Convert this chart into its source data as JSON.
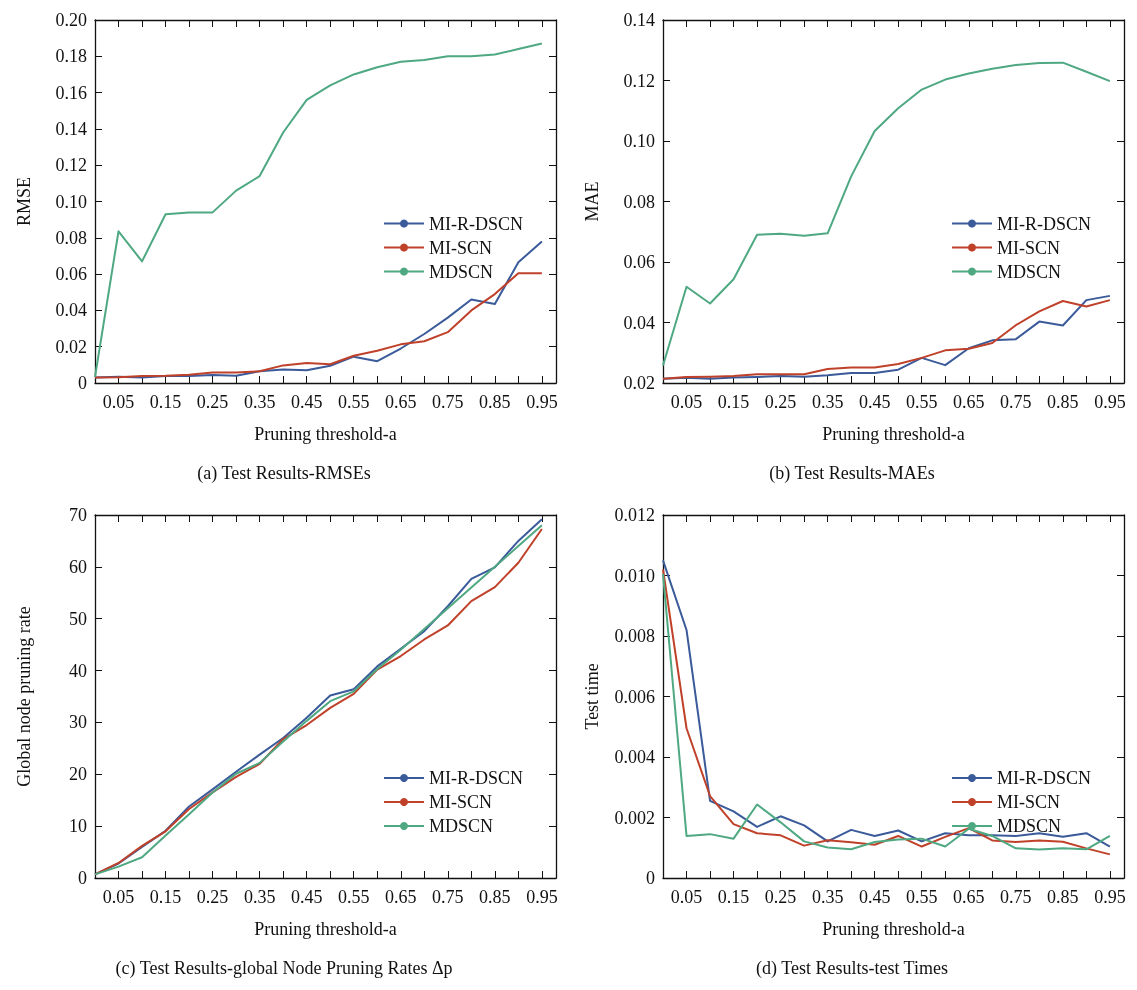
{
  "chart_data": [
    {
      "type": "line",
      "ylabel": "RMSE",
      "xlabel": "Pruning threshold-a",
      "annotations": [
        "(a) Test Results-RMSEs"
      ],
      "legend": "right",
      "grid": false,
      "x": [
        0,
        0.05,
        0.1,
        0.15,
        0.2,
        0.25,
        0.3,
        0.35,
        0.4,
        0.45,
        0.5,
        0.55,
        0.6,
        0.65,
        0.7,
        0.75,
        0.8,
        0.85,
        0.9,
        0.95
      ],
      "xlim": [
        0,
        0.98
      ],
      "xticks": [
        {
          "value": 0.05,
          "label": "0.05"
        },
        {
          "value": 0.1,
          "label": null
        },
        {
          "value": 0.15,
          "label": "0.15"
        },
        {
          "value": 0.2,
          "label": null
        },
        {
          "value": 0.25,
          "label": "0.25"
        },
        {
          "value": 0.3,
          "label": null
        },
        {
          "value": 0.35,
          "label": "0.35"
        },
        {
          "value": 0.4,
          "label": null
        },
        {
          "value": 0.45,
          "label": "0.45"
        },
        {
          "value": 0.5,
          "label": null
        },
        {
          "value": 0.55,
          "label": "0.55"
        },
        {
          "value": 0.6,
          "label": null
        },
        {
          "value": 0.65,
          "label": "0.65"
        },
        {
          "value": 0.7,
          "label": null
        },
        {
          "value": 0.75,
          "label": "0.75"
        },
        {
          "value": 0.8,
          "label": null
        },
        {
          "value": 0.85,
          "label": "0.85"
        },
        {
          "value": 0.9,
          "label": null
        },
        {
          "value": 0.95,
          "label": "0.95"
        }
      ],
      "ylim": [
        0,
        0.2
      ],
      "yticks": [
        0,
        {
          "value": 0.02,
          "label": "0.02"
        },
        {
          "value": 0.04,
          "label": "0.04"
        },
        {
          "value": 0.06,
          "label": "0.06"
        },
        {
          "value": 0.08,
          "label": "0.08"
        },
        {
          "value": 0.1,
          "label": "0.10"
        },
        {
          "value": 0.12,
          "label": "0.12"
        },
        {
          "value": 0.14,
          "label": "0.14"
        },
        {
          "value": 0.16,
          "label": "0.16"
        },
        {
          "value": 0.18,
          "label": "0.18"
        },
        {
          "value": 0.2,
          "label": "0.20"
        }
      ],
      "series": [
        {
          "name": "MI-R-DSCN",
          "color": "#3a5a9a",
          "values": [
            0.003,
            0.0035,
            0.003,
            0.0038,
            0.0038,
            0.0044,
            0.004,
            0.0065,
            0.0075,
            0.007,
            0.0095,
            0.0145,
            0.012,
            0.019,
            0.027,
            0.036,
            0.046,
            0.0435,
            0.0665,
            0.078
          ]
        },
        {
          "name": "MI-SCN",
          "color": "#c0412a",
          "values": [
            0.003,
            0.0032,
            0.0038,
            0.004,
            0.0045,
            0.0058,
            0.0058,
            0.0065,
            0.0097,
            0.011,
            0.0103,
            0.015,
            0.0178,
            0.0213,
            0.023,
            0.028,
            0.04,
            0.049,
            0.0605,
            0.0605
          ]
        },
        {
          "name": "MDSCN",
          "color": "#4ea882",
          "values": [
            0.0034,
            0.0836,
            0.067,
            0.093,
            0.094,
            0.094,
            0.106,
            0.114,
            0.138,
            0.156,
            0.164,
            0.17,
            0.174,
            0.177,
            0.178,
            0.18,
            0.18,
            0.181,
            0.184,
            0.187
          ]
        }
      ]
    },
    {
      "type": "line",
      "ylabel": "MAE",
      "xlabel": "Pruning threshold-a",
      "annotations": [
        "(b) Test Results-MAEs"
      ],
      "legend": "right",
      "grid": false,
      "x": [
        0,
        0.05,
        0.1,
        0.15,
        0.2,
        0.25,
        0.3,
        0.35,
        0.4,
        0.45,
        0.5,
        0.55,
        0.6,
        0.65,
        0.7,
        0.75,
        0.8,
        0.85,
        0.9,
        0.95
      ],
      "xlim": [
        0,
        0.98
      ],
      "xticks": [
        {
          "value": 0.05,
          "label": "0.05"
        },
        {
          "value": 0.1,
          "label": null
        },
        {
          "value": 0.15,
          "label": "0.15"
        },
        {
          "value": 0.2,
          "label": null
        },
        {
          "value": 0.25,
          "label": "0.25"
        },
        {
          "value": 0.3,
          "label": null
        },
        {
          "value": 0.35,
          "label": "0.35"
        },
        {
          "value": 0.4,
          "label": null
        },
        {
          "value": 0.45,
          "label": "0.45"
        },
        {
          "value": 0.5,
          "label": null
        },
        {
          "value": 0.55,
          "label": "0.55"
        },
        {
          "value": 0.6,
          "label": null
        },
        {
          "value": 0.65,
          "label": "0.65"
        },
        {
          "value": 0.7,
          "label": null
        },
        {
          "value": 0.75,
          "label": "0.75"
        },
        {
          "value": 0.8,
          "label": null
        },
        {
          "value": 0.85,
          "label": "0.85"
        },
        {
          "value": 0.9,
          "label": null
        },
        {
          "value": 0.95,
          "label": "0.95"
        }
      ],
      "ylim": [
        0.02,
        0.14
      ],
      "yticks": [
        {
          "value": 0.02,
          "label": "0.02"
        },
        {
          "value": 0.04,
          "label": "0.04"
        },
        {
          "value": 0.06,
          "label": "0.06"
        },
        {
          "value": 0.08,
          "label": "0.08"
        },
        {
          "value": 0.1,
          "label": "0.10"
        },
        {
          "value": 0.12,
          "label": "0.12"
        },
        {
          "value": 0.14,
          "label": "0.14"
        }
      ],
      "series": [
        {
          "name": "MI-R-DSCN",
          "color": "#3a5a9a",
          "values": [
            0.0214,
            0.0217,
            0.0214,
            0.0218,
            0.022,
            0.0223,
            0.0221,
            0.0226,
            0.0233,
            0.0233,
            0.0244,
            0.0283,
            0.0259,
            0.0315,
            0.0341,
            0.0345,
            0.0403,
            0.039,
            0.0474,
            0.0488
          ]
        },
        {
          "name": "MI-SCN",
          "color": "#c0412a",
          "values": [
            0.0214,
            0.022,
            0.0221,
            0.0223,
            0.0229,
            0.0229,
            0.0229,
            0.0246,
            0.0251,
            0.0251,
            0.0263,
            0.0283,
            0.0308,
            0.0313,
            0.0332,
            0.0391,
            0.0437,
            0.0471,
            0.0453,
            0.0474
          ]
        },
        {
          "name": "MDSCN",
          "color": "#4ea882",
          "values": [
            0.0258,
            0.0518,
            0.0463,
            0.0543,
            0.069,
            0.0693,
            0.0687,
            0.0695,
            0.0883,
            0.1033,
            0.1108,
            0.117,
            0.1203,
            0.1223,
            0.1239,
            0.1251,
            0.1258,
            0.1259,
            0.1229,
            0.1198
          ]
        }
      ]
    },
    {
      "type": "line",
      "ylabel": "Global node pruning rate",
      "xlabel": "Pruning threshold-a",
      "annotations": [
        "(c) Test Results-global Node Pruning Rates Δp"
      ],
      "legend": "bottom right",
      "grid": false,
      "x": [
        0,
        0.05,
        0.1,
        0.15,
        0.2,
        0.25,
        0.3,
        0.35,
        0.4,
        0.45,
        0.5,
        0.55,
        0.6,
        0.65,
        0.7,
        0.75,
        0.8,
        0.85,
        0.9,
        0.95
      ],
      "xlim": [
        0,
        0.98
      ],
      "xticks": [
        {
          "value": 0.05,
          "label": "0.05"
        },
        {
          "value": 0.1,
          "label": null
        },
        {
          "value": 0.15,
          "label": "0.15"
        },
        {
          "value": 0.2,
          "label": null
        },
        {
          "value": 0.25,
          "label": "0.25"
        },
        {
          "value": 0.3,
          "label": null
        },
        {
          "value": 0.35,
          "label": "0.35"
        },
        {
          "value": 0.4,
          "label": null
        },
        {
          "value": 0.45,
          "label": "0.45"
        },
        {
          "value": 0.5,
          "label": null
        },
        {
          "value": 0.55,
          "label": "0.55"
        },
        {
          "value": 0.6,
          "label": null
        },
        {
          "value": 0.65,
          "label": "0.65"
        },
        {
          "value": 0.7,
          "label": null
        },
        {
          "value": 0.75,
          "label": "0.75"
        },
        {
          "value": 0.8,
          "label": null
        },
        {
          "value": 0.85,
          "label": "0.85"
        },
        {
          "value": 0.9,
          "label": null
        },
        {
          "value": 0.95,
          "label": "0.95"
        }
      ],
      "ylim": [
        0,
        70
      ],
      "yticks": [
        0,
        10,
        20,
        30,
        40,
        50,
        60,
        70
      ],
      "series": [
        {
          "name": "MI-R-DSCN",
          "color": "#3a5a9a",
          "values": [
            0.7,
            2.8,
            6.0,
            9.1,
            13.8,
            17.1,
            20.5,
            23.8,
            27.0,
            30.9,
            35.2,
            36.4,
            40.8,
            44.2,
            47.6,
            52.4,
            57.7,
            59.9,
            65.0,
            69.2
          ]
        },
        {
          "name": "MI-SCN",
          "color": "#c0412a",
          "values": [
            0.7,
            2.9,
            6.2,
            9.0,
            13.3,
            16.5,
            19.5,
            22.0,
            26.8,
            29.5,
            32.8,
            35.5,
            40.2,
            42.8,
            46.0,
            48.7,
            53.4,
            56.1,
            60.8,
            67.3
          ]
        },
        {
          "name": "MDSCN",
          "color": "#4ea882",
          "values": [
            0.7,
            2.2,
            4.0,
            8.2,
            12.3,
            16.5,
            20.1,
            22.2,
            26.3,
            30.3,
            34.1,
            36.0,
            40.3,
            44.0,
            48.0,
            52.0,
            56.0,
            60.0,
            64.0,
            68.0
          ]
        }
      ]
    },
    {
      "type": "line",
      "ylabel": "Test time",
      "xlabel": "Pruning threshold-a",
      "annotations": [
        "(d) Test Results-test Times"
      ],
      "legend": "bottom right",
      "grid": false,
      "x": [
        0,
        0.05,
        0.1,
        0.15,
        0.2,
        0.25,
        0.3,
        0.35,
        0.4,
        0.45,
        0.5,
        0.55,
        0.6,
        0.65,
        0.7,
        0.75,
        0.8,
        0.85,
        0.9,
        0.95
      ],
      "xlim": [
        0,
        0.98
      ],
      "xticks": [
        {
          "value": 0.05,
          "label": "0.05"
        },
        {
          "value": 0.1,
          "label": null
        },
        {
          "value": 0.15,
          "label": "0.15"
        },
        {
          "value": 0.2,
          "label": null
        },
        {
          "value": 0.25,
          "label": "0.25"
        },
        {
          "value": 0.3,
          "label": null
        },
        {
          "value": 0.35,
          "label": "0.35"
        },
        {
          "value": 0.4,
          "label": null
        },
        {
          "value": 0.45,
          "label": "0.45"
        },
        {
          "value": 0.5,
          "label": null
        },
        {
          "value": 0.55,
          "label": "0.55"
        },
        {
          "value": 0.6,
          "label": null
        },
        {
          "value": 0.65,
          "label": "0.65"
        },
        {
          "value": 0.7,
          "label": null
        },
        {
          "value": 0.75,
          "label": "0.75"
        },
        {
          "value": 0.8,
          "label": null
        },
        {
          "value": 0.85,
          "label": "0.85"
        },
        {
          "value": 0.9,
          "label": null
        },
        {
          "value": 0.95,
          "label": "0.95"
        }
      ],
      "ylim": [
        0,
        0.012
      ],
      "yticks": [
        0,
        0.002,
        0.004,
        0.006,
        0.008,
        {
          "value": 0.01,
          "label": "0.010"
        },
        0.012
      ],
      "series": [
        {
          "name": "MI-R-DSCN",
          "color": "#3a5a9a",
          "values": [
            0.0105,
            0.0082,
            0.00255,
            0.0022,
            0.00169,
            0.00204,
            0.00174,
            0.00121,
            0.00159,
            0.00139,
            0.00157,
            0.00121,
            0.00148,
            0.00141,
            0.00141,
            0.00139,
            0.00148,
            0.00136,
            0.00148,
            0.00104
          ]
        },
        {
          "name": "MI-SCN",
          "color": "#c0412a",
          "values": [
            0.0102,
            0.00495,
            0.00271,
            0.00178,
            0.00148,
            0.00141,
            0.00107,
            0.00125,
            0.00118,
            0.0011,
            0.00139,
            0.00104,
            0.00136,
            0.00165,
            0.00124,
            0.00119,
            0.00124,
            0.0012,
            0.00098,
            0.00078
          ]
        },
        {
          "name": "MDSCN",
          "color": "#4ea882",
          "values": [
            0.01005,
            0.00139,
            0.00145,
            0.0013,
            0.00243,
            0.00184,
            0.00121,
            0.00101,
            0.00095,
            0.00119,
            0.00127,
            0.0013,
            0.00104,
            0.00163,
            0.00139,
            0.00098,
            0.00094,
            0.00098,
            0.00095,
            0.00139
          ]
        }
      ]
    }
  ]
}
